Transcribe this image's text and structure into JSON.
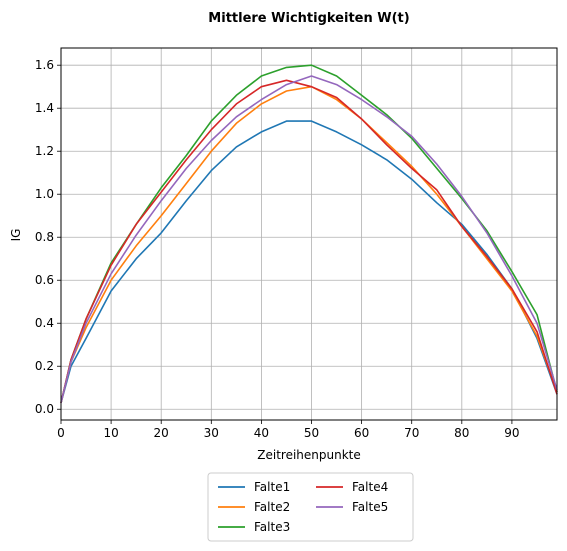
{
  "chart_data": {
    "type": "line",
    "title": "Mittlere Wichtigkeiten W(t)",
    "xlabel": "Zeitreihenpunkte",
    "ylabel": "IG",
    "xlim": [
      0,
      99
    ],
    "ylim": [
      -0.05,
      1.68
    ],
    "xticks": [
      0,
      10,
      20,
      30,
      40,
      50,
      60,
      70,
      80,
      90
    ],
    "yticks": [
      0.0,
      0.2,
      0.4,
      0.6,
      0.8,
      1.0,
      1.2,
      1.4,
      1.6
    ],
    "xtick_labels": [
      "0",
      "10",
      "20",
      "30",
      "40",
      "50",
      "60",
      "70",
      "80",
      "90"
    ],
    "ytick_labels": [
      "0.0",
      "0.2",
      "0.4",
      "0.6",
      "0.8",
      "1.0",
      "1.2",
      "1.4",
      "1.6"
    ],
    "grid": true,
    "legend_position": "below-center",
    "x": [
      0,
      2,
      5,
      10,
      15,
      20,
      25,
      30,
      35,
      40,
      45,
      50,
      55,
      60,
      65,
      70,
      75,
      80,
      85,
      90,
      95,
      99
    ],
    "series": [
      {
        "name": "Falte1",
        "color": "#1f77b4",
        "values": [
          0.03,
          0.2,
          0.33,
          0.55,
          0.7,
          0.82,
          0.97,
          1.11,
          1.22,
          1.29,
          1.34,
          1.34,
          1.29,
          1.23,
          1.16,
          1.07,
          0.96,
          0.86,
          0.72,
          0.56,
          0.33,
          0.07
        ]
      },
      {
        "name": "Falte2",
        "color": "#ff7f0e",
        "values": [
          0.03,
          0.22,
          0.38,
          0.6,
          0.76,
          0.9,
          1.05,
          1.2,
          1.33,
          1.42,
          1.48,
          1.5,
          1.44,
          1.35,
          1.24,
          1.13,
          1.0,
          0.85,
          0.7,
          0.55,
          0.34,
          0.08
        ]
      },
      {
        "name": "Falte3",
        "color": "#2ca02c",
        "values": [
          0.03,
          0.23,
          0.42,
          0.68,
          0.86,
          1.03,
          1.18,
          1.34,
          1.46,
          1.55,
          1.59,
          1.6,
          1.55,
          1.46,
          1.37,
          1.26,
          1.12,
          0.98,
          0.83,
          0.64,
          0.44,
          0.08
        ]
      },
      {
        "name": "Falte4",
        "color": "#d62728",
        "values": [
          0.03,
          0.23,
          0.42,
          0.67,
          0.86,
          1.01,
          1.16,
          1.3,
          1.42,
          1.5,
          1.53,
          1.5,
          1.45,
          1.35,
          1.23,
          1.12,
          1.02,
          0.85,
          0.71,
          0.56,
          0.36,
          0.07
        ]
      },
      {
        "name": "Falte5",
        "color": "#9467bd",
        "values": [
          0.03,
          0.22,
          0.4,
          0.63,
          0.81,
          0.97,
          1.12,
          1.25,
          1.36,
          1.44,
          1.51,
          1.55,
          1.51,
          1.44,
          1.36,
          1.27,
          1.14,
          0.99,
          0.82,
          0.62,
          0.4,
          0.09
        ]
      }
    ]
  }
}
